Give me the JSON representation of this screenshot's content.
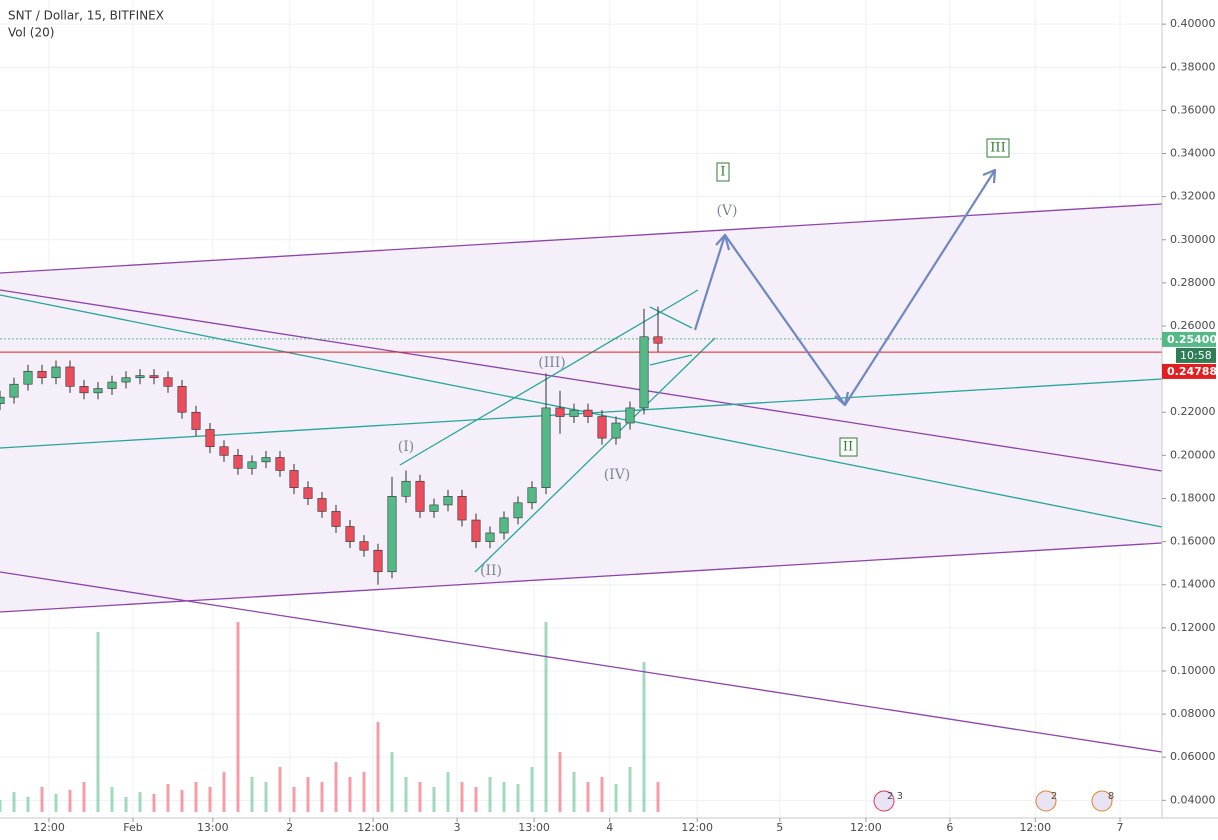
{
  "chart_data": {
    "type": "candlestick",
    "title": "SNT / Dollar, 15, BITFINEX",
    "subtitle": "Vol (20)",
    "x": [
      0,
      2,
      4,
      6,
      8,
      10,
      12,
      14,
      16,
      18,
      20,
      22,
      24,
      26,
      28,
      30,
      32,
      34,
      36,
      38,
      40,
      42,
      44,
      46,
      48,
      50,
      52,
      54,
      56,
      58,
      60,
      62,
      64,
      66,
      68,
      70,
      72,
      74,
      76,
      78,
      80,
      82,
      84,
      86,
      88,
      90,
      92,
      94
    ],
    "open": [
      0.224,
      0.227,
      0.233,
      0.239,
      0.236,
      0.241,
      0.232,
      0.229,
      0.231,
      0.234,
      0.236,
      0.237,
      0.236,
      0.232,
      0.22,
      0.212,
      0.204,
      0.2,
      0.194,
      0.197,
      0.199,
      0.193,
      0.185,
      0.18,
      0.174,
      0.167,
      0.16,
      0.156,
      0.146,
      0.181,
      0.188,
      0.174,
      0.177,
      0.181,
      0.17,
      0.16,
      0.164,
      0.171,
      0.178,
      0.185,
      0.222,
      0.218,
      0.221,
      0.218,
      0.208,
      0.215,
      0.222,
      0.255
    ],
    "high": [
      0.23,
      0.236,
      0.242,
      0.242,
      0.244,
      0.244,
      0.235,
      0.234,
      0.237,
      0.239,
      0.24,
      0.24,
      0.239,
      0.235,
      0.223,
      0.215,
      0.207,
      0.203,
      0.2,
      0.202,
      0.202,
      0.196,
      0.188,
      0.183,
      0.177,
      0.17,
      0.163,
      0.159,
      0.19,
      0.193,
      0.191,
      0.18,
      0.184,
      0.184,
      0.173,
      0.167,
      0.174,
      0.181,
      0.188,
      0.238,
      0.23,
      0.224,
      0.224,
      0.221,
      0.218,
      0.225,
      0.268,
      0.269
    ],
    "low": [
      0.221,
      0.224,
      0.23,
      0.233,
      0.233,
      0.229,
      0.226,
      0.226,
      0.228,
      0.231,
      0.233,
      0.233,
      0.229,
      0.217,
      0.209,
      0.201,
      0.197,
      0.191,
      0.191,
      0.194,
      0.19,
      0.182,
      0.177,
      0.171,
      0.164,
      0.157,
      0.153,
      0.14,
      0.143,
      0.178,
      0.171,
      0.171,
      0.174,
      0.167,
      0.157,
      0.157,
      0.161,
      0.168,
      0.175,
      0.182,
      0.21,
      0.215,
      0.215,
      0.205,
      0.205,
      0.212,
      0.219,
      0.248
    ],
    "close": [
      0.227,
      0.233,
      0.239,
      0.236,
      0.241,
      0.232,
      0.229,
      0.231,
      0.234,
      0.236,
      0.237,
      0.236,
      0.232,
      0.22,
      0.212,
      0.204,
      0.2,
      0.194,
      0.197,
      0.199,
      0.193,
      0.185,
      0.18,
      0.174,
      0.167,
      0.16,
      0.156,
      0.146,
      0.181,
      0.188,
      0.174,
      0.177,
      0.181,
      0.17,
      0.16,
      0.164,
      0.171,
      0.178,
      0.185,
      0.222,
      0.218,
      0.221,
      0.218,
      0.208,
      0.215,
      0.222,
      0.255,
      0.252
    ],
    "volume": [
      12,
      20,
      15,
      25,
      18,
      22,
      30,
      180,
      25,
      15,
      20,
      18,
      28,
      22,
      30,
      25,
      40,
      190,
      35,
      30,
      45,
      25,
      35,
      30,
      50,
      35,
      40,
      90,
      60,
      35,
      30,
      25,
      40,
      30,
      25,
      35,
      30,
      28,
      45,
      190,
      60,
      40,
      30,
      35,
      28,
      45,
      150,
      30
    ],
    "up_color": "#53b987",
    "down_color": "#eb4d5c",
    "xlim": [
      0,
      166
    ],
    "xticks": [
      {
        "value": 7,
        "label": "12:00"
      },
      {
        "value": 19,
        "label": "Feb"
      },
      {
        "value": 30.4,
        "label": "13:00"
      },
      {
        "value": 41.4,
        "label": "2"
      },
      {
        "value": 53.3,
        "label": "12:00"
      },
      {
        "value": 65.3,
        "label": "3"
      },
      {
        "value": 76.3,
        "label": "13:00"
      },
      {
        "value": 87.1,
        "label": "4"
      },
      {
        "value": 99.6,
        "label": "12:00"
      },
      {
        "value": 111.4,
        "label": "5"
      },
      {
        "value": 123.7,
        "label": "12:00"
      },
      {
        "value": 135.7,
        "label": "6"
      },
      {
        "value": 147.9,
        "label": "12:00"
      },
      {
        "value": 160,
        "label": "7"
      }
    ],
    "ylim": [
      0.0318,
      0.4112
    ],
    "yticks": [
      {
        "value": 0.04,
        "label": "0.04000"
      },
      {
        "value": 0.06,
        "label": "0.06000"
      },
      {
        "value": 0.08,
        "label": "0.08000"
      },
      {
        "value": 0.1,
        "label": "0.10000"
      },
      {
        "value": 0.12,
        "label": "0.12000"
      },
      {
        "value": 0.14,
        "label": "0.14000"
      },
      {
        "value": 0.16,
        "label": "0.16000"
      },
      {
        "value": 0.18,
        "label": "0.18000"
      },
      {
        "value": 0.2,
        "label": "0.20000"
      },
      {
        "value": 0.22,
        "label": "0.22000"
      },
      {
        "value": 0.24,
        "label": "0.24000"
      },
      {
        "value": 0.26,
        "label": "0.26000"
      },
      {
        "value": 0.28,
        "label": "0.28000"
      },
      {
        "value": 0.3,
        "label": "0.30000"
      },
      {
        "value": 0.32,
        "label": "0.32000"
      },
      {
        "value": 0.34,
        "label": "0.34000"
      },
      {
        "value": 0.36,
        "label": "0.36000"
      },
      {
        "value": 0.38,
        "label": "0.38000"
      },
      {
        "value": 0.4,
        "label": "0.40000"
      }
    ],
    "grid": true,
    "price_lines": [
      {
        "value": 0.254,
        "label": "0.25400",
        "color": "#53b987"
      },
      {
        "value": 0.24788,
        "label": "0.24788",
        "color": "#e02020"
      }
    ],
    "countdown": "10:58",
    "wave_labels": [
      "(I)",
      "(II)",
      "(III)",
      "(IV)",
      "(V)",
      "I",
      "II",
      "III"
    ],
    "event_badges": [
      "2 3",
      "2",
      "8"
    ]
  }
}
